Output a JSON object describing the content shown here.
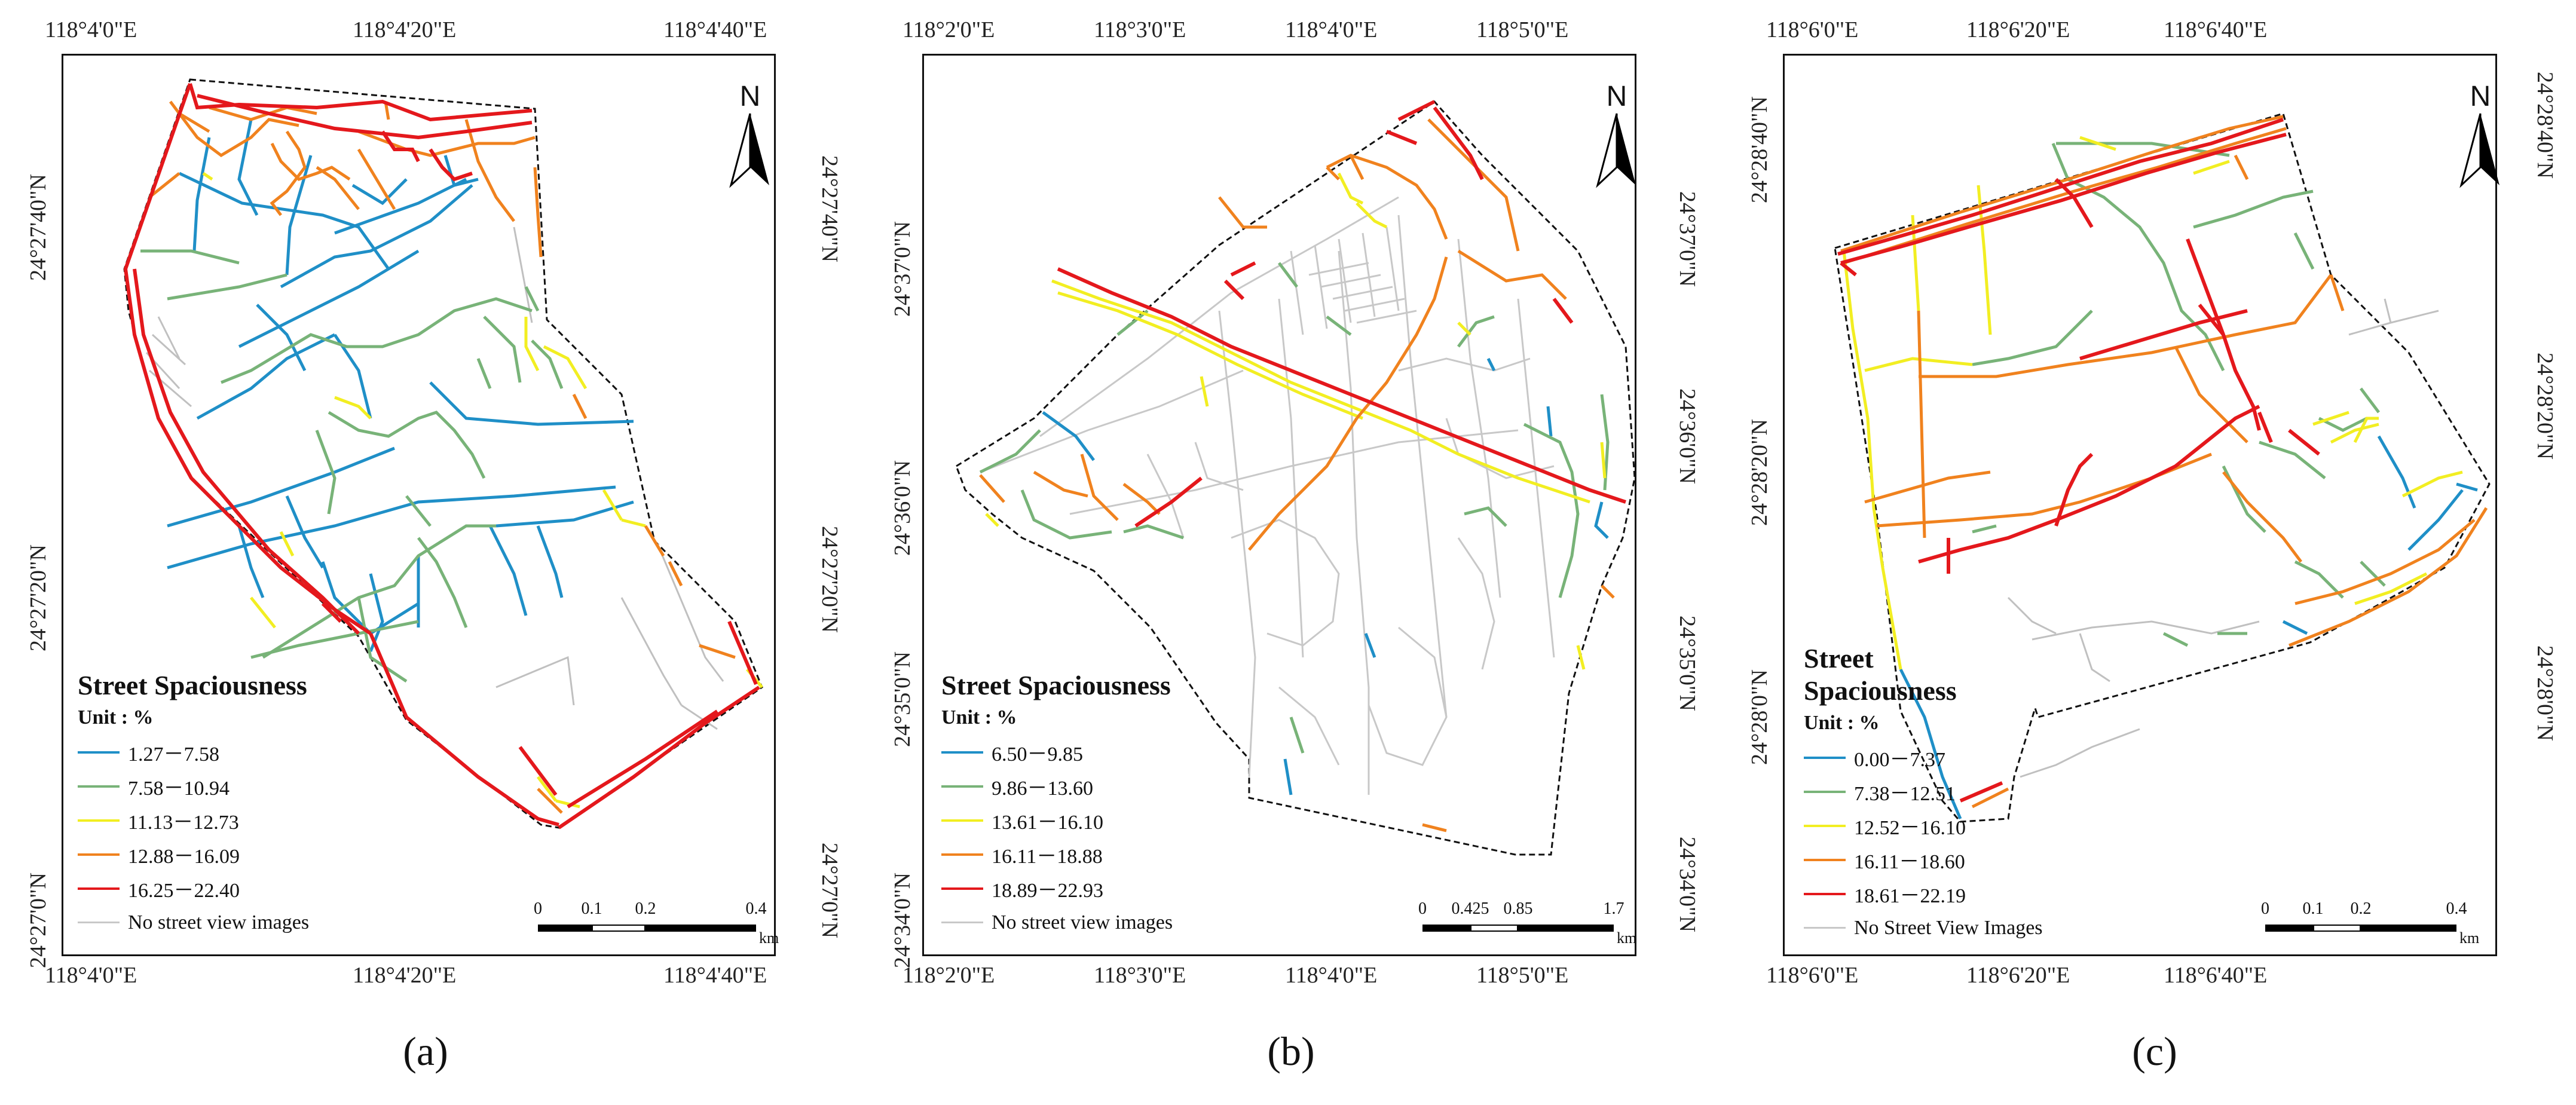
{
  "panels": [
    {
      "caption": "(a)",
      "top_ticks": [
        "118°4'0\"E",
        "118°4'20\"E",
        "118°4'40\"E"
      ],
      "bottom_ticks": [
        "118°4'0\"E",
        "118°4'20\"E",
        "118°4'40\"E"
      ],
      "left_ticks": [
        "24°27'40\"N",
        "24°27'20\"N",
        "24°27'0\"N"
      ],
      "right_ticks": [
        "24°27'40\"N",
        "24°27'20\"N",
        "24°27'0\"N"
      ],
      "north_label": "N",
      "legend": {
        "title": "Street Spaciousness",
        "unit": "Unit : %",
        "classes": [
          {
            "label": "1.27－7.58",
            "color": "#1f8fc7"
          },
          {
            "label": "7.58－10.94",
            "color": "#78b378"
          },
          {
            "label": "11.13－12.73",
            "color": "#f2ee22"
          },
          {
            "label": "12.88－16.09",
            "color": "#f0821e"
          },
          {
            "label": "16.25－22.40",
            "color": "#e4181c"
          },
          {
            "label": "No street view images",
            "color": "#c8c8c8"
          }
        ]
      },
      "scale": {
        "ticks": [
          "0",
          "0.1",
          "0.2",
          "0.4"
        ],
        "unit": "km"
      }
    },
    {
      "caption": "(b)",
      "top_ticks": [
        "118°2'0\"E",
        "118°3'0\"E",
        "118°4'0\"E",
        "118°5'0\"E"
      ],
      "bottom_ticks": [
        "118°2'0\"E",
        "118°3'0\"E",
        "118°4'0\"E",
        "118°5'0\"E"
      ],
      "left_ticks": [
        "24°37'0\"N",
        "24°36'0\"N",
        "24°35'0\"N",
        "24°34'0\"N"
      ],
      "right_ticks": [
        "24°37'0\"N",
        "24°36'0\"N",
        "24°35'0\"N",
        "24°34'0\"N"
      ],
      "north_label": "N",
      "legend": {
        "title": "Street Spaciousness",
        "unit": "Unit : %",
        "classes": [
          {
            "label": "6.50－9.85",
            "color": "#1f8fc7"
          },
          {
            "label": "9.86－13.60",
            "color": "#78b378"
          },
          {
            "label": "13.61－16.10",
            "color": "#f2ee22"
          },
          {
            "label": "16.11－18.88",
            "color": "#f0821e"
          },
          {
            "label": "18.89－22.93",
            "color": "#e4181c"
          },
          {
            "label": "No street view images",
            "color": "#c8c8c8"
          }
        ]
      },
      "scale": {
        "ticks": [
          "0",
          "0.425",
          "0.85",
          "1.7"
        ],
        "unit": "km"
      }
    },
    {
      "caption": "(c)",
      "top_ticks": [
        "118°6'0\"E",
        "118°6'20\"E",
        "118°6'40\"E"
      ],
      "bottom_ticks": [
        "118°6'0\"E",
        "118°6'20\"E",
        "118°6'40\"E"
      ],
      "left_ticks": [
        "24°28'40\"N",
        "24°28'20\"N",
        "24°28'0\"N"
      ],
      "right_ticks": [
        "24°28'40\"N",
        "24°28'20\"N",
        "24°28'0\"N"
      ],
      "north_label": "N",
      "legend": {
        "title_line1": "Street",
        "title_line2": "Spaciousness",
        "unit": "Unit : %",
        "classes": [
          {
            "label": "0.00－7.37",
            "color": "#1f8fc7"
          },
          {
            "label": "7.38－12.51",
            "color": "#78b378"
          },
          {
            "label": "12.52－16.10",
            "color": "#f2ee22"
          },
          {
            "label": "16.11－18.60",
            "color": "#f0821e"
          },
          {
            "label": "18.61－22.19",
            "color": "#e4181c"
          },
          {
            "label": "No Street View Images",
            "color": "#c8c8c8"
          }
        ]
      },
      "scale": {
        "ticks": [
          "0",
          "0.1",
          "0.2",
          "0.4"
        ],
        "unit": "km"
      }
    }
  ]
}
